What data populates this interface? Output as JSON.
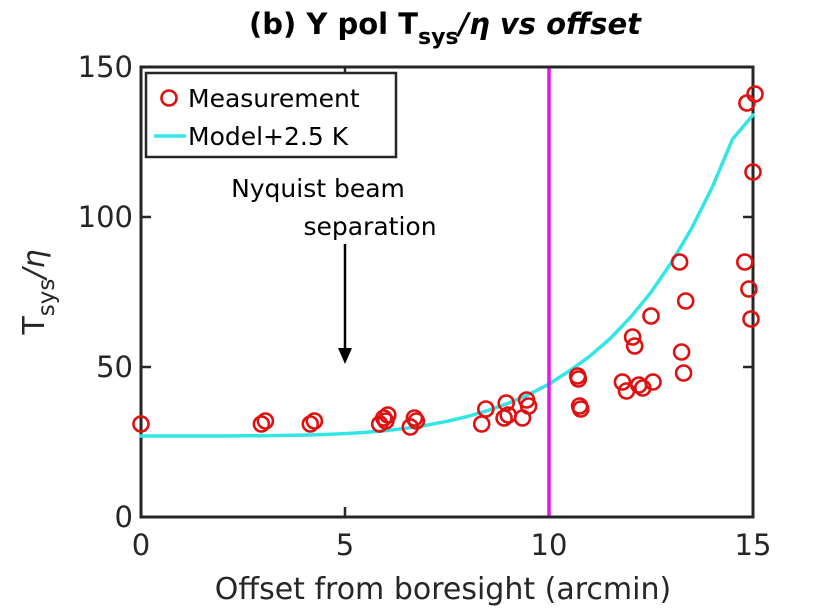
{
  "chart_data": {
    "type": "scatter",
    "title": "(b) Y pol T",
    "title_sub": "sys",
    "title_tail": "/η vs offset",
    "xlabel": "Offset from boresight (arcmin)",
    "ylabel": "T",
    "ylabel_sub": "sys",
    "ylabel_tail": "/η",
    "xlim": [
      0,
      15
    ],
    "ylim": [
      0,
      150
    ],
    "xticks": [
      0,
      5,
      10,
      15
    ],
    "yticks": [
      0,
      50,
      100,
      150
    ],
    "xtick_labels": [
      "0",
      "5",
      "10",
      "15"
    ],
    "ytick_labels": [
      "0",
      "50",
      "100",
      "150"
    ],
    "legend_location": "top-left",
    "colors": {
      "measurement": "#e01010",
      "model": "#33e6e6",
      "vline": "#e614e6",
      "axis": "#262626"
    },
    "series": [
      {
        "name": "Measurement",
        "kind": "scatter",
        "marker": "circle",
        "x": [
          0.0,
          2.95,
          3.05,
          4.15,
          4.25,
          5.85,
          5.95,
          6.0,
          6.05,
          6.6,
          6.7,
          6.75,
          8.35,
          8.45,
          8.9,
          8.95,
          9.0,
          9.35,
          9.45,
          9.5,
          10.7,
          10.72,
          10.75,
          10.78,
          11.8,
          11.9,
          12.05,
          12.1,
          12.2,
          12.3,
          12.5,
          12.55,
          13.2,
          13.25,
          13.3,
          13.35,
          14.8,
          14.85,
          14.9,
          14.95,
          15.0,
          15.05
        ],
        "y": [
          31,
          31,
          32,
          31,
          32,
          31,
          33,
          32,
          34,
          30,
          33,
          32,
          31,
          36,
          33,
          38,
          34,
          33,
          39,
          37,
          47,
          46,
          37,
          36,
          45,
          42,
          60,
          57,
          44,
          43,
          67,
          45,
          85,
          55,
          48,
          72,
          85,
          138,
          76,
          66,
          115,
          141
        ]
      },
      {
        "name": "Model+2.5 K",
        "kind": "line",
        "x": [
          0,
          0.5,
          1,
          1.5,
          2,
          2.5,
          3,
          3.5,
          4,
          4.5,
          5,
          5.5,
          6,
          6.5,
          7,
          7.5,
          8,
          8.5,
          9,
          9.5,
          10,
          10.5,
          11,
          11.5,
          12,
          12.5,
          13,
          13.5,
          14,
          14.5,
          15
        ],
        "y": [
          27.0,
          27.0,
          27.0,
          27.0,
          27.0,
          27.1,
          27.1,
          27.2,
          27.3,
          27.5,
          27.8,
          28.2,
          28.8,
          29.6,
          30.6,
          31.9,
          33.5,
          35.5,
          37.9,
          40.8,
          44.3,
          48.7,
          53.6,
          59.5,
          66.6,
          74.9,
          84.8,
          96.3,
          109.9,
          126.0,
          134.0
        ]
      }
    ],
    "vline": {
      "x": 10
    },
    "annotation": {
      "lines": [
        "Nyquist beam",
        "separation"
      ],
      "arrow_x": 5,
      "arrow_tail_y": 91,
      "arrow_head_y": 51
    }
  }
}
